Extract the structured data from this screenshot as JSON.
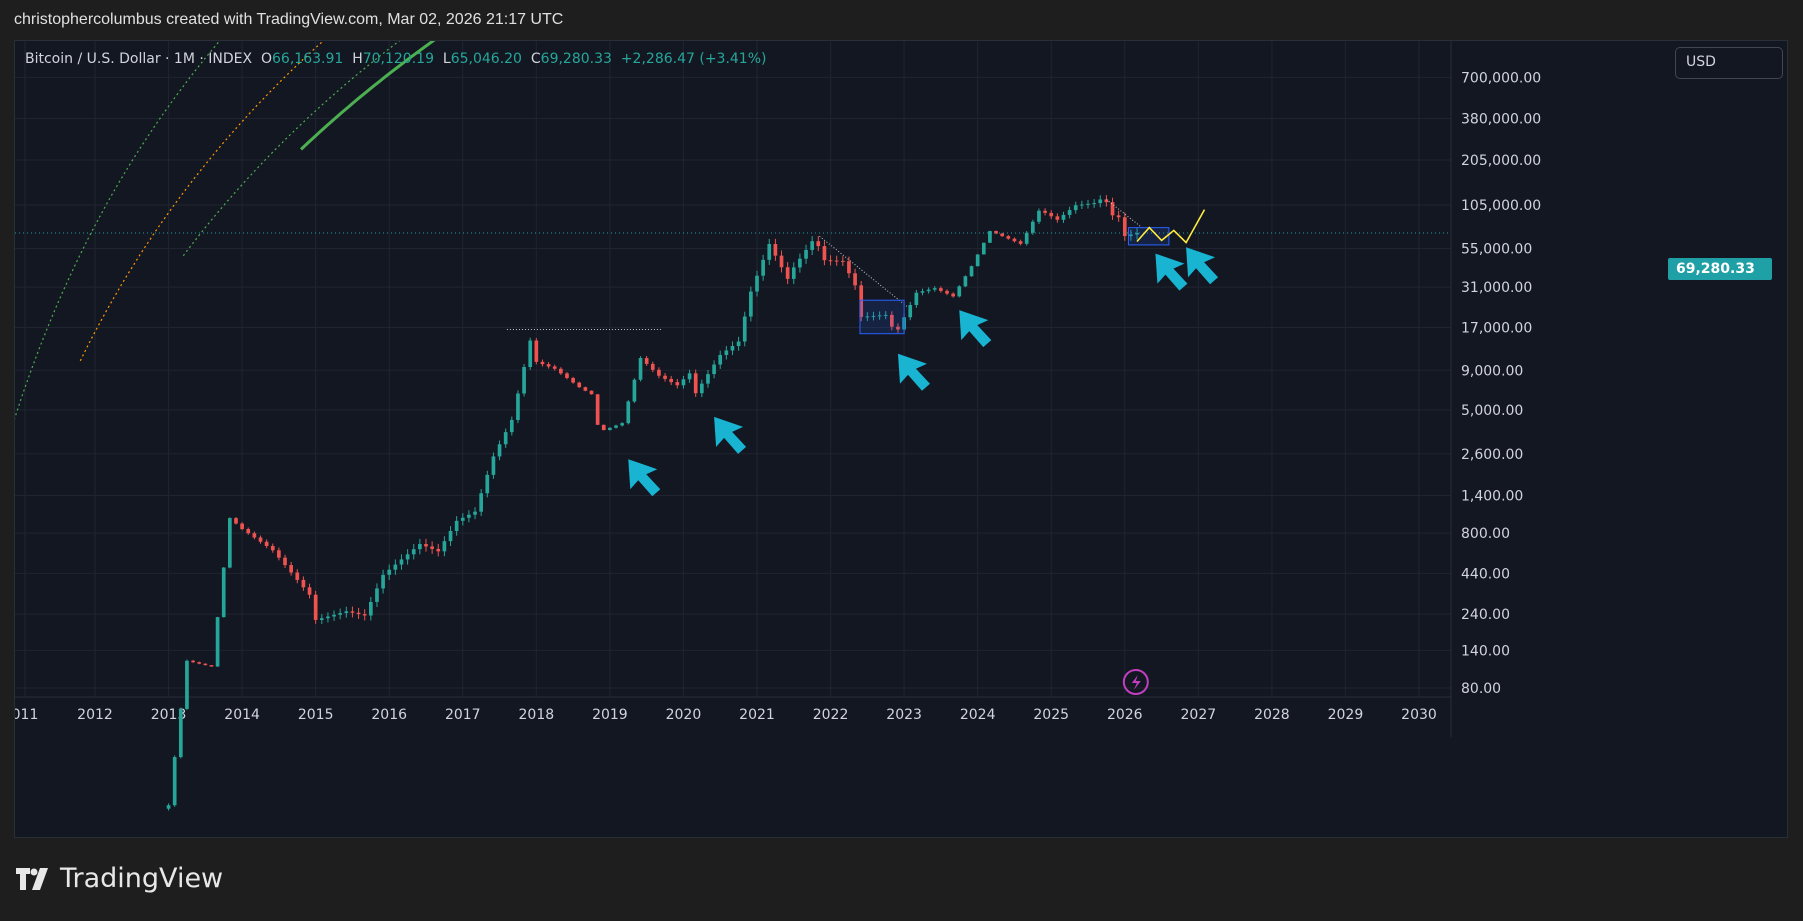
{
  "header": {
    "title": "christophercolumbus created with TradingView.com, Mar 02, 2026 21:17 UTC"
  },
  "symbol": {
    "name": "Bitcoin / U.S. Dollar · 1M · INDEX",
    "o_label": "O",
    "o_value": "66,163.91",
    "h_label": "H",
    "h_value": "70,120.19",
    "l_label": "L",
    "l_value": "65,046.20",
    "c_label": "C",
    "c_value": "69,280.33",
    "change": "+2,286.47 (+3.41%)"
  },
  "currency": "USD",
  "last_price_label": "69,280.33",
  "footer": {
    "brand": "TradingView"
  },
  "colors": {
    "up": "#26a69a",
    "down": "#ef5350",
    "background": "#131722",
    "band_green": "#4caf50",
    "band_orange": "#ff9800",
    "projection": "#ffeb3b",
    "arrow": "#18b4d2"
  },
  "chart_data": {
    "type": "candlestick",
    "title": "Bitcoin / U.S. Dollar · 1M · INDEX",
    "y_scale": "log",
    "ylim": [
      70,
      1000000
    ],
    "xlim": [
      "2011-01",
      "2030-12"
    ],
    "grid": true,
    "x_ticks": [
      "011",
      "2012",
      "2013",
      "2014",
      "2015",
      "2016",
      "2017",
      "2018",
      "2019",
      "2020",
      "2021",
      "2022",
      "2023",
      "2024",
      "2025",
      "2026",
      "2027",
      "2028",
      "2029",
      "2030"
    ],
    "y_ticks": [
      {
        "v": 700000,
        "label": "700,000.00"
      },
      {
        "v": 380000,
        "label": "380,000.00"
      },
      {
        "v": 205000,
        "label": "205,000.00"
      },
      {
        "v": 105000,
        "label": "105,000.00"
      },
      {
        "v": 55000,
        "label": "55,000.00"
      },
      {
        "v": 31000,
        "label": "31,000.00"
      },
      {
        "v": 17000,
        "label": "17,000.00"
      },
      {
        "v": 9000,
        "label": "9,000.00"
      },
      {
        "v": 5000,
        "label": "5,000.00"
      },
      {
        "v": 2600,
        "label": "2,600.00"
      },
      {
        "v": 1400,
        "label": "1,400.00"
      },
      {
        "v": 800,
        "label": "800.00"
      },
      {
        "v": 440,
        "label": "440.00"
      },
      {
        "v": 240,
        "label": "240.00"
      },
      {
        "v": 140,
        "label": "140.00"
      },
      {
        "v": 80,
        "label": "80.00"
      }
    ],
    "last_price": 69280.33,
    "price_anchors": [
      [
        "2013-01",
        14
      ],
      [
        "2013-04",
        120
      ],
      [
        "2013-08",
        110
      ],
      [
        "2013-11",
        1000
      ],
      [
        "2014-01",
        850
      ],
      [
        "2014-06",
        620
      ],
      [
        "2014-12",
        320
      ],
      [
        "2015-01",
        220
      ],
      [
        "2015-06",
        250
      ],
      [
        "2015-09",
        235
      ],
      [
        "2015-12",
        430
      ],
      [
        "2016-06",
        680
      ],
      [
        "2016-09",
        610
      ],
      [
        "2016-12",
        960
      ],
      [
        "2017-03",
        1100
      ],
      [
        "2017-06",
        2500
      ],
      [
        "2017-09",
        4300
      ],
      [
        "2017-12",
        14000
      ],
      [
        "2018-01",
        10200
      ],
      [
        "2018-04",
        9200
      ],
      [
        "2018-08",
        7000
      ],
      [
        "2018-10",
        6300
      ],
      [
        "2018-11",
        4000
      ],
      [
        "2018-12",
        3700
      ],
      [
        "2019-03",
        4100
      ],
      [
        "2019-06",
        10800
      ],
      [
        "2019-09",
        8300
      ],
      [
        "2019-12",
        7200
      ],
      [
        "2020-02",
        8600
      ],
      [
        "2020-03",
        6400
      ],
      [
        "2020-07",
        11300
      ],
      [
        "2020-10",
        13800
      ],
      [
        "2020-12",
        29000
      ],
      [
        "2021-03",
        58800
      ],
      [
        "2021-06",
        35000
      ],
      [
        "2021-07",
        41500
      ],
      [
        "2021-10",
        61300
      ],
      [
        "2021-11",
        57000
      ],
      [
        "2021-12",
        46200
      ],
      [
        "2022-03",
        45500
      ],
      [
        "2022-05",
        31800
      ],
      [
        "2022-06",
        19900
      ],
      [
        "2022-10",
        20500
      ],
      [
        "2022-11",
        17200
      ],
      [
        "2022-12",
        16500
      ],
      [
        "2023-03",
        28500
      ],
      [
        "2023-06",
        30500
      ],
      [
        "2023-09",
        27000
      ],
      [
        "2023-12",
        42300
      ],
      [
        "2024-03",
        71300
      ],
      [
        "2024-08",
        59000
      ],
      [
        "2024-11",
        96400
      ],
      [
        "2024-12",
        93400
      ],
      [
        "2025-02",
        84300
      ],
      [
        "2025-05",
        104600
      ],
      [
        "2025-08",
        108000
      ],
      [
        "2025-09",
        114000
      ],
      [
        "2025-10",
        109500
      ],
      [
        "2025-11",
        90000
      ],
      [
        "2025-12",
        87500
      ],
      [
        "2026-01",
        66163.91
      ],
      [
        "2026-03",
        69280.33
      ]
    ],
    "detailed_candles": [
      {
        "d": "2026-03",
        "o": 66163.91,
        "h": 70120.19,
        "l": 65046.2,
        "c": 69280.33
      }
    ],
    "support_curve": {
      "a": -5.2,
      "b": 0.0,
      "note": "lower green support curve"
    },
    "bands": [
      "outer green dotted",
      "orange dotted",
      "inner green dotted",
      "solid green support"
    ],
    "arrows": [
      [
        "2019-04",
        2400
      ],
      [
        "2020-06",
        4500
      ],
      [
        "2022-12",
        11500
      ],
      [
        "2023-10",
        22000
      ],
      [
        "2026-06",
        51000
      ],
      [
        "2026-11",
        56000
      ]
    ],
    "projection": [
      [
        "2026-03",
        61000
      ],
      [
        "2026-05",
        75000
      ],
      [
        "2026-07",
        62000
      ],
      [
        "2026-09",
        72000
      ],
      [
        "2026-11",
        60000
      ],
      [
        "2027-02",
        98000
      ]
    ]
  }
}
